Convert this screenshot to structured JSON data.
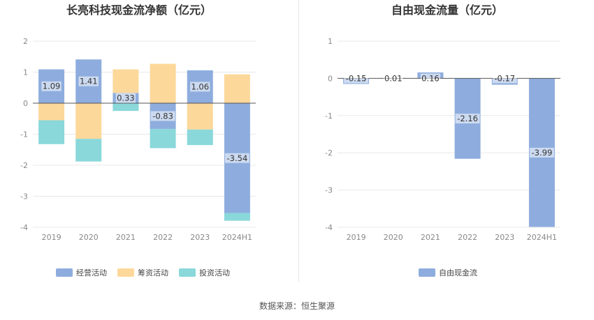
{
  "colors": {
    "operating": "#8eadde",
    "financing": "#fdd89b",
    "investing": "#8ad8da",
    "fcf": "#8eadde",
    "grid": "#e8e8e8",
    "zero": "#555555",
    "tick": "#888888",
    "title": "#333333",
    "label": "#333333"
  },
  "footer": {
    "source": "数据来源：恒生聚源"
  },
  "chart_data": [
    {
      "type": "bar",
      "stacked": true,
      "title": "长亮科技现金流净额（亿元）",
      "categories": [
        "2019",
        "2020",
        "2021",
        "2022",
        "2023",
        "2024H1"
      ],
      "ylim": [
        -4,
        2
      ],
      "yticks": [
        2,
        1,
        0,
        -1,
        -2,
        -3,
        -4
      ],
      "legend_position": "bottom",
      "series": [
        {
          "name": "经营活动",
          "key": "operating",
          "values": [
            1.09,
            1.41,
            0.33,
            -0.83,
            1.06,
            -3.54
          ],
          "labels": [
            "1.09",
            "1.41",
            "0.33",
            "-0.83",
            "1.06",
            "-3.54"
          ]
        },
        {
          "name": "筹资活动",
          "key": "financing",
          "values": [
            -0.55,
            -1.15,
            0.76,
            1.27,
            -0.85,
            0.93
          ]
        },
        {
          "name": "投资活动",
          "key": "investing",
          "values": [
            -0.77,
            -0.73,
            -0.25,
            -0.62,
            -0.5,
            -0.25
          ]
        }
      ]
    },
    {
      "type": "bar",
      "title": "自由现金流量（亿元）",
      "categories": [
        "2019",
        "2020",
        "2021",
        "2022",
        "2023",
        "2024H1"
      ],
      "ylim": [
        -4,
        1
      ],
      "yticks": [
        1,
        0,
        -1,
        -2,
        -3,
        -4
      ],
      "legend_position": "bottom",
      "series": [
        {
          "name": "自由现金流",
          "key": "fcf",
          "values": [
            -0.15,
            0.01,
            0.16,
            -2.16,
            -0.17,
            -3.99
          ],
          "labels": [
            "-0.15",
            "0.01",
            "0.16",
            "-2.16",
            "-0.17",
            "-3.99"
          ]
        }
      ]
    }
  ]
}
